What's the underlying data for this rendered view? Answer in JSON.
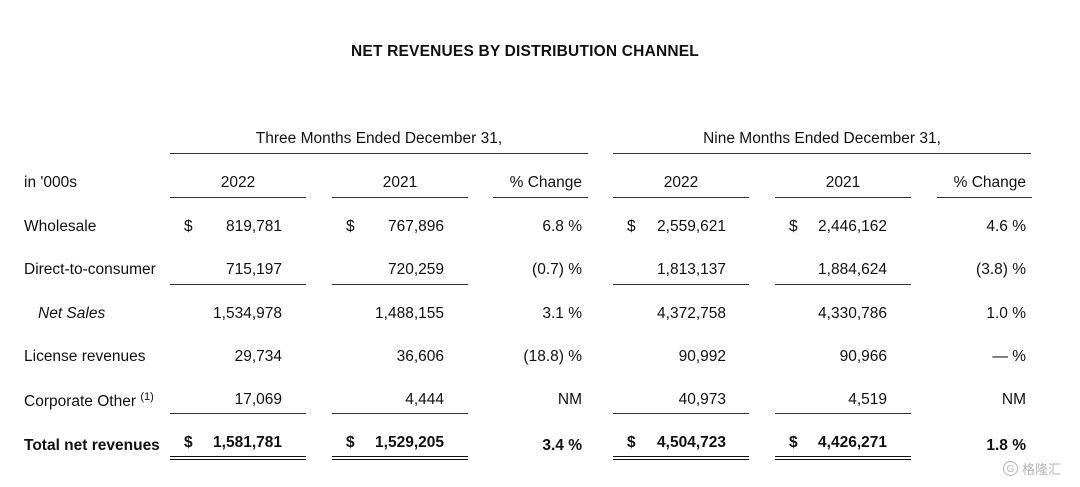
{
  "title": "NET REVENUES BY DISTRIBUTION CHANNEL",
  "periods": [
    "Three Months Ended December 31,",
    "Nine Months Ended December 31,"
  ],
  "header": {
    "label": "in '000s",
    "columns": [
      "2022",
      "2021",
      "% Change",
      "2022",
      "2021",
      "% Change"
    ]
  },
  "rows": [
    {
      "label": "Wholesale",
      "label_note": "",
      "values": [
        "819,781",
        "767,896",
        "6.8 %",
        "2,559,621",
        "2,446,162",
        "4.6 %"
      ]
    },
    {
      "label": "Direct-to-consumer",
      "label_note": "",
      "values": [
        "715,197",
        "720,259",
        "(0.7) %",
        "1,813,137",
        "1,884,624",
        "(3.8) %"
      ]
    },
    {
      "label": "Net Sales",
      "label_note": "",
      "values": [
        "1,534,978",
        "1,488,155",
        "3.1 %",
        "4,372,758",
        "4,330,786",
        "1.0 %"
      ]
    },
    {
      "label": "License revenues",
      "label_note": "",
      "values": [
        "29,734",
        "36,606",
        "(18.8) %",
        "90,992",
        "90,966",
        "— %"
      ]
    },
    {
      "label": "Corporate Other",
      "label_note": "(1)",
      "values": [
        "17,069",
        "4,444",
        "NM",
        "40,973",
        "4,519",
        "NM"
      ]
    },
    {
      "label": "Total net revenues",
      "label_note": "",
      "values": [
        "1,581,781",
        "1,529,205",
        "3.4 %",
        "4,504,723",
        "4,426,271",
        "1.8 %"
      ]
    }
  ],
  "currency_symbol": "$",
  "watermark": "格隆汇"
}
